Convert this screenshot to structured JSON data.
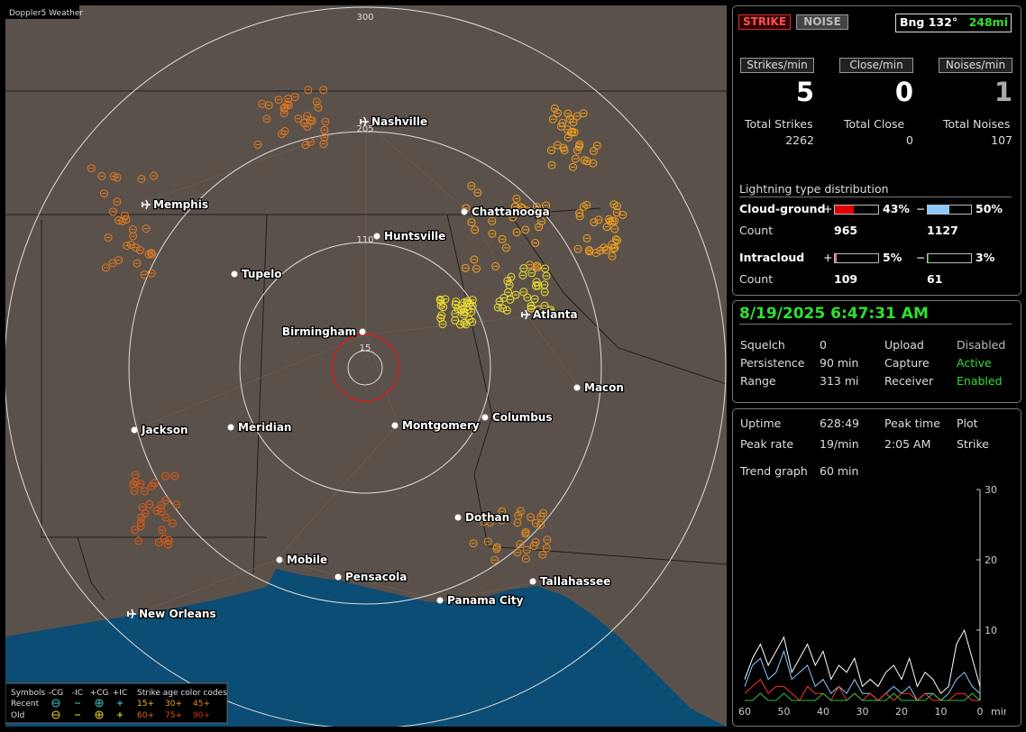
{
  "map": {
    "title": "Doppler5 Weather",
    "range_labels": [
      "300",
      "205",
      "110",
      "15"
    ],
    "cities": [
      "Nashville",
      "Memphis",
      "Chattanooga",
      "Huntsville",
      "Tupelo",
      "Birmingham",
      "Atlanta",
      "Macon",
      "Jackson",
      "Meridian",
      "Montgomery",
      "Columbus",
      "Dothan",
      "Mobile",
      "Pensacola",
      "Panama City",
      "Tallahassee",
      "New Orleans"
    ],
    "legend": {
      "symbols": "Symbols",
      "types": [
        "-CG",
        "-IC",
        "+CG",
        "+IC"
      ],
      "age_title": "Strike age color codes",
      "rows": [
        {
          "label": "Recent",
          "ages": [
            "15+",
            "30+",
            "45+"
          ]
        },
        {
          "label": "Old",
          "ages": [
            "60+",
            "75+",
            "90+"
          ]
        }
      ]
    }
  },
  "status": {
    "modes": [
      "STRIKE",
      "NOISE"
    ],
    "bearing": "Bng 132°",
    "distance": "248mi"
  },
  "rates": [
    {
      "label": "Strikes/min",
      "value": 5
    },
    {
      "label": "Close/min",
      "value": 0
    },
    {
      "label": "Noises/min",
      "value": 1
    }
  ],
  "totals": [
    {
      "label": "Total Strikes",
      "value": 2262
    },
    {
      "label": "Total Close",
      "value": 0
    },
    {
      "label": "Total Noises",
      "value": 107
    }
  ],
  "distribution": {
    "title": "Lightning type distribution",
    "signs": [
      "+",
      "−"
    ],
    "count_label": "Count",
    "rows": [
      {
        "label": "Cloud-ground",
        "plus": {
          "value": 43,
          "label": "43%"
        },
        "minus": {
          "value": 50,
          "label": "50%"
        },
        "counts": [
          965,
          1127
        ]
      },
      {
        "label": "Intracloud",
        "plus": {
          "value": 5,
          "label": "5%"
        },
        "minus": {
          "value": 3,
          "label": "3%"
        },
        "counts": [
          109,
          61
        ]
      }
    ]
  },
  "datetime": "8/19/2025 6:47:31 AM",
  "settings": [
    [
      "Squelch",
      "0",
      "Upload",
      "Disabled"
    ],
    [
      "Persistence",
      "90 min",
      "Capture",
      "Active"
    ],
    [
      "Range",
      "313 mi",
      "Receiver",
      "Enabled"
    ]
  ],
  "stats": [
    [
      "Uptime",
      "628:49",
      "Peak time",
      "Plot"
    ],
    [
      "Peak rate",
      "19/min",
      "2:05 AM",
      "Strike"
    ],
    [
      "Trend graph",
      "60 min"
    ]
  ],
  "trend": {
    "type": "line",
    "xlim": [
      60,
      0
    ],
    "ylim": [
      0,
      30
    ],
    "yticks": [
      10,
      20,
      30
    ],
    "xticks": [
      60,
      50,
      40,
      30,
      20,
      10,
      0
    ],
    "x_unit": "min",
    "x": [
      60,
      58,
      56,
      54,
      52,
      50,
      48,
      46,
      44,
      42,
      40,
      38,
      36,
      34,
      32,
      30,
      28,
      26,
      24,
      22,
      20,
      18,
      16,
      14,
      12,
      10,
      8,
      6,
      4,
      2,
      0
    ],
    "series": [
      {
        "color": "#ffffff",
        "values": [
          3,
          6,
          8,
          5,
          7,
          9,
          4,
          6,
          8,
          5,
          7,
          3,
          5,
          4,
          6,
          2,
          3,
          2,
          4,
          5,
          3,
          6,
          2,
          4,
          3,
          1,
          2,
          8,
          10,
          6,
          2
        ]
      },
      {
        "color": "#8ec8ff",
        "values": [
          2,
          5,
          6,
          3,
          4,
          7,
          3,
          4,
          5,
          2,
          3,
          1,
          2,
          1,
          3,
          1,
          1,
          0,
          1,
          2,
          1,
          2,
          0,
          1,
          1,
          0,
          1,
          3,
          4,
          2,
          1
        ]
      },
      {
        "color": "#ff3030",
        "values": [
          1,
          2,
          3,
          1,
          2,
          2,
          1,
          0,
          2,
          1,
          1,
          0,
          2,
          0,
          1,
          0,
          1,
          0,
          1,
          0,
          1,
          1,
          0,
          1,
          0,
          0,
          0,
          1,
          1,
          0,
          0
        ]
      },
      {
        "color": "#30c030",
        "values": [
          0,
          0,
          1,
          0,
          0,
          1,
          0,
          0,
          0,
          0,
          1,
          0,
          0,
          0,
          1,
          0,
          0,
          0,
          0,
          1,
          0,
          0,
          0,
          0,
          1,
          0,
          0,
          0,
          0,
          1,
          0
        ]
      }
    ]
  }
}
